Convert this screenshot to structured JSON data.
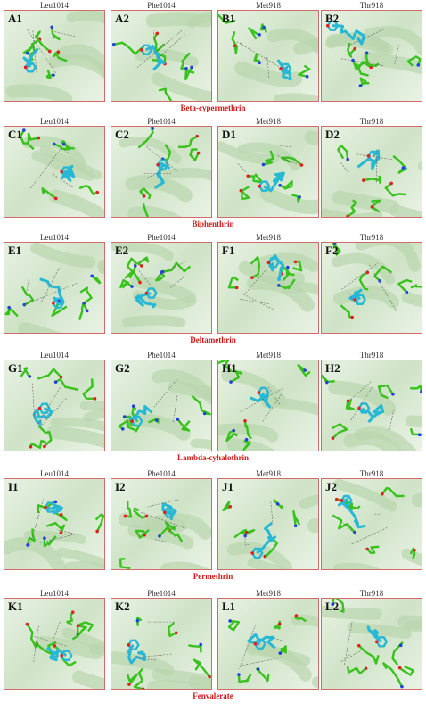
{
  "rows": [
    {
      "compound": "Beta-cypermethrin",
      "labels": [
        "Leu1014",
        "Phe1014",
        "Met918",
        "Thr918"
      ],
      "panels": [
        "A1",
        "A2",
        "B1",
        "B2"
      ]
    },
    {
      "compound": "Biphenthrin",
      "labels": [
        "Leu1014",
        "Phe1014",
        "Met918",
        "Thr918"
      ],
      "panels": [
        "C1",
        "C2",
        "D1",
        "D2"
      ]
    },
    {
      "compound": "Deltamethrin",
      "labels": [
        "Leu1014",
        "Phe1014",
        "Met918",
        "Thr918"
      ],
      "panels": [
        "E1",
        "E2",
        "F1",
        "F2"
      ]
    },
    {
      "compound": "Lambda-cyhalothrin",
      "labels": [
        "Leu1014",
        "Phe1014",
        "Met918",
        "Thr918"
      ],
      "panels": [
        "G1",
        "G2",
        "H1",
        "H2"
      ]
    },
    {
      "compound": "Permethrin",
      "labels": [
        "Leu1014",
        "Phe1014",
        "Met918",
        "Thr918"
      ],
      "panels": [
        "I1",
        "I2",
        "J1",
        "J2"
      ]
    },
    {
      "compound": "Fenvalerate",
      "labels": [
        "Leu1014",
        "Phe1014",
        "Met918",
        "Thr918"
      ],
      "panels": [
        "K1",
        "K2",
        "L1",
        "L2"
      ]
    }
  ],
  "colors": {
    "frame": "#d46a6a",
    "title": "#d01818",
    "ligand": "#27b8d6",
    "residue": "#38c21c",
    "oxygen": "#e02020",
    "nitrogen": "#2040e0"
  }
}
